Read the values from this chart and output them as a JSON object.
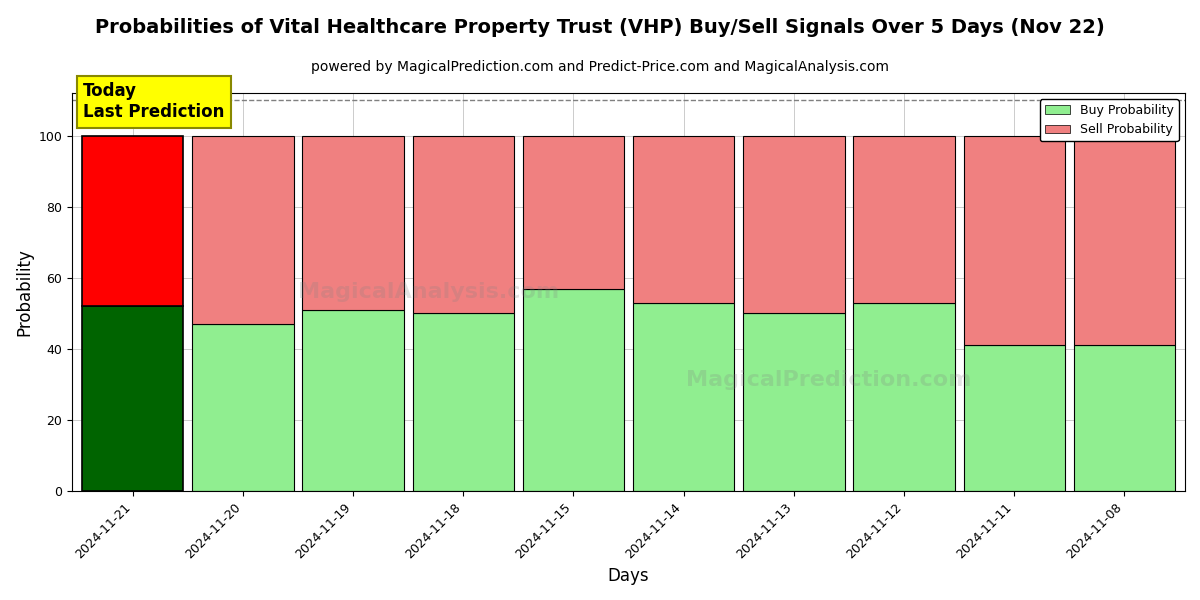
{
  "title": "Probabilities of Vital Healthcare Property Trust (VHP) Buy/Sell Signals Over 5 Days (Nov 22)",
  "subtitle": "powered by MagicalPrediction.com and Predict-Price.com and MagicalAnalysis.com",
  "xlabel": "Days",
  "ylabel": "Probability",
  "categories": [
    "2024-11-21",
    "2024-11-20",
    "2024-11-19",
    "2024-11-18",
    "2024-11-15",
    "2024-11-14",
    "2024-11-13",
    "2024-11-12",
    "2024-11-11",
    "2024-11-08"
  ],
  "buy_values": [
    52,
    47,
    51,
    50,
    57,
    53,
    50,
    53,
    41,
    41
  ],
  "sell_values": [
    48,
    53,
    49,
    50,
    43,
    47,
    50,
    47,
    59,
    59
  ],
  "today_index": 0,
  "buy_color_today": "#006400",
  "sell_color_today": "#FF0000",
  "buy_color_normal": "#90EE90",
  "sell_color_normal": "#F08080",
  "bar_edge_color": "#000000",
  "bar_edge_width": 0.8,
  "today_bar_edge_width": 1.2,
  "bar_width": 0.92,
  "ylim": [
    0,
    112
  ],
  "yticks": [
    0,
    20,
    40,
    60,
    80,
    100
  ],
  "dashed_line_y": 110,
  "legend_buy_label": "Buy Probability",
  "legend_sell_label": "Sell Probability",
  "today_label_line1": "Today",
  "today_label_line2": "Last Prediction",
  "today_box_color": "#FFFF00",
  "watermark_text1": "MagicalAnalysis.com",
  "watermark_text2": "MagicalPrediction.com",
  "bg_color": "#FFFFFF",
  "grid_color": "#CCCCCC",
  "title_fontsize": 14,
  "subtitle_fontsize": 10,
  "axis_label_fontsize": 12,
  "tick_fontsize": 9
}
